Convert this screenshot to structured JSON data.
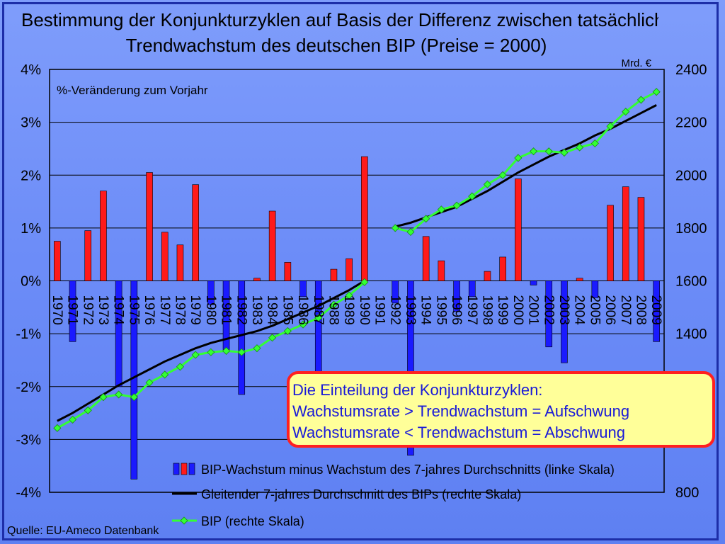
{
  "title": {
    "line1": "Bestimmung der Konjunkturzyklen auf Basis der Differenz zwischen tatsächlichem",
    "line2": "Trendwachstum des deutschen BIP (Preise = 2000)"
  },
  "source": "Quelle: EU-Ameco Datenbank",
  "info_box": {
    "line1": "Die Einteilung der Konjunkturzyklen:",
    "line2": "Wachstumsrate > Trendwachstum = Aufschwung",
    "line3": "Wachstumsrate < Trendwachstum = Abschwung"
  },
  "colors": {
    "positive_bar": "#ff1a1a",
    "negative_bar": "#1a1aff",
    "trend_line": "#000000",
    "gdp_line": "#33ff33"
  },
  "chart_data": {
    "type": "bar",
    "left_axis_label": "%-Veränderung zum Vorjahr",
    "right_axis_unit": "Mrd. €",
    "left_ylim": [
      -4,
      4
    ],
    "left_ticks": [
      "4%",
      "3%",
      "2%",
      "1%",
      "0%",
      "-1%",
      "-2%",
      "-3%",
      "-4%"
    ],
    "right_ylim": [
      800,
      2400
    ],
    "right_ticks": [
      "2400",
      "2200",
      "2000",
      "1800",
      "1600",
      "1400",
      "800"
    ],
    "right_tick_values": [
      2400,
      2200,
      2000,
      1800,
      1600,
      1400,
      800
    ],
    "grid": true,
    "categories": [
      "1970",
      "1971",
      "1972",
      "1973",
      "1974",
      "1975",
      "1976",
      "1977",
      "1978",
      "1979",
      "1980",
      "1981",
      "1982",
      "1983",
      "1984",
      "1985",
      "1986",
      "1987",
      "1988",
      "1989",
      "1990",
      "1991",
      "1992",
      "1993",
      "1994",
      "1995",
      "1996",
      "1997",
      "1998",
      "1999",
      "2000",
      "2001",
      "2002",
      "2003",
      "2004",
      "2005",
      "2006",
      "2007",
      "2008",
      "2009"
    ],
    "series": [
      {
        "name": "BIP-Wachstum minus Wachstum des 7-jahres Durchschnitts (linke Skala)",
        "axis": "left",
        "values": [
          0.75,
          -1.15,
          0.95,
          1.7,
          -2.0,
          -3.75,
          2.05,
          0.92,
          0.68,
          1.82,
          -0.45,
          -1.3,
          -2.15,
          0.05,
          1.32,
          0.35,
          -0.3,
          -1.72,
          0.22,
          0.42,
          2.35,
          null,
          -0.42,
          -3.3,
          0.84,
          0.38,
          -0.58,
          -0.3,
          0.18,
          0.45,
          1.93,
          -0.08,
          -1.25,
          -1.55,
          0.05,
          -0.32,
          1.43,
          1.78,
          1.58,
          -1.15
        ]
      },
      {
        "name": "Gleitender 7-jahres Durchschnitt des BIPs (rechte Skala)",
        "axis": "right",
        "values": [
          1070,
          1100,
          1135,
          1170,
          1205,
          1235,
          1265,
          1295,
          1320,
          1345,
          1365,
          1380,
          1395,
          1410,
          1430,
          1455,
          1480,
          1505,
          1535,
          1565,
          1600,
          null,
          1805,
          1820,
          1840,
          1860,
          1880,
          1910,
          1940,
          1975,
          2010,
          2040,
          2070,
          2095,
          2120,
          2150,
          2175,
          2205,
          2235,
          2265
        ]
      },
      {
        "name": "BIP (rechte Skala)",
        "axis": "right",
        "values": [
          1043,
          1075,
          1110,
          1160,
          1170,
          1160,
          1215,
          1245,
          1275,
          1320,
          1330,
          1335,
          1330,
          1345,
          1385,
          1410,
          1435,
          1460,
          1510,
          1545,
          1595,
          null,
          1800,
          1785,
          1835,
          1870,
          1885,
          1920,
          1965,
          2000,
          2065,
          2090,
          2090,
          2085,
          2105,
          2120,
          2185,
          2240,
          2285,
          2315
        ]
      }
    ],
    "legend_position": "bottom-right"
  }
}
